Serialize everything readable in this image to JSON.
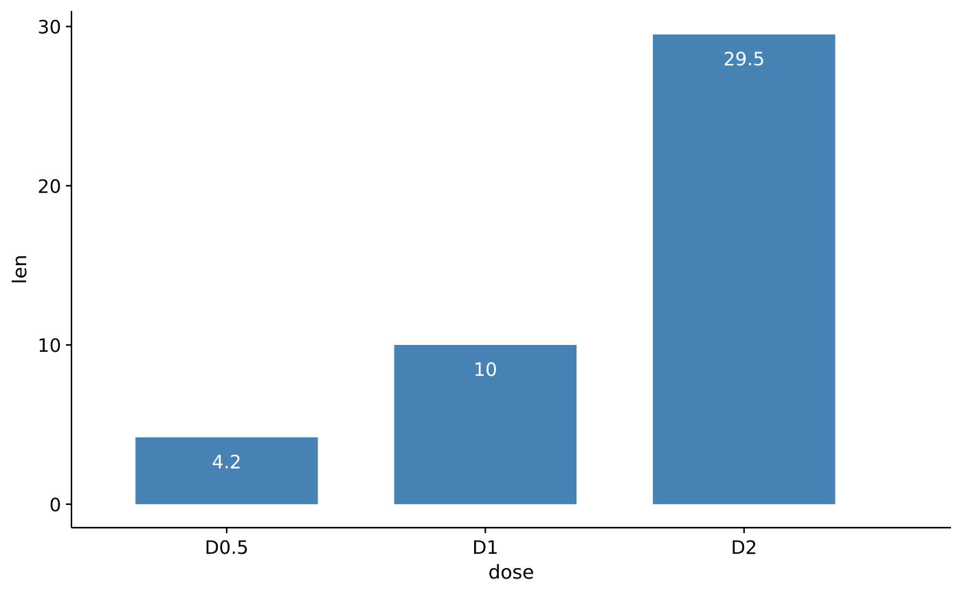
{
  "chart_data": {
    "type": "bar",
    "categories": [
      "D0.5",
      "D1",
      "D2"
    ],
    "values": [
      4.2,
      10,
      29.5
    ],
    "data_labels": [
      "4.2",
      "10",
      "29.5"
    ],
    "title": "",
    "xlabel": "dose",
    "ylabel": "len",
    "ylim": [
      -1.475,
      30.975
    ],
    "yticks": [
      0,
      10,
      20,
      30
    ],
    "ytick_labels": [
      "0",
      "10",
      "20",
      "30"
    ],
    "grid": false,
    "legend": "none",
    "bar_color": "#4682b4",
    "label_color": "#ffffff"
  }
}
